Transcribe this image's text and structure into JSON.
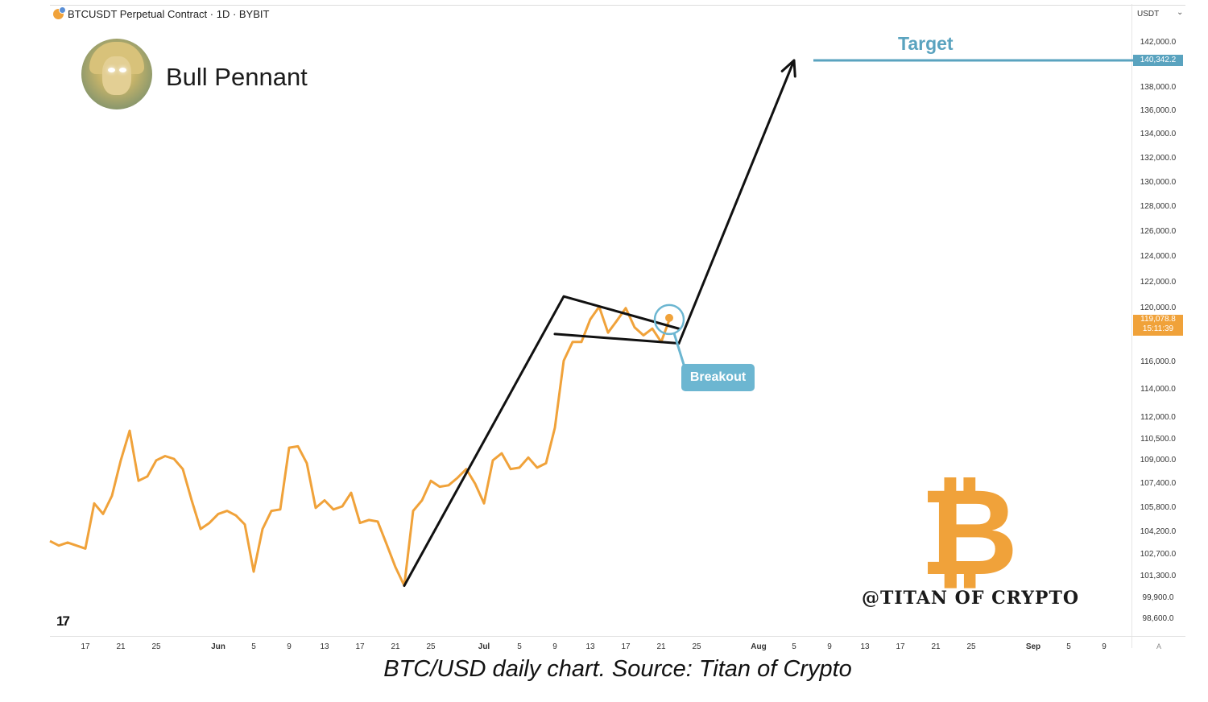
{
  "header": {
    "symbol_line": "BTCUSDT Perpetual Contract · 1D · BYBIT",
    "currency": "USDT",
    "currency_chevron": "⌄"
  },
  "annotation": {
    "title": "Bull Pennant",
    "target_label": "Target",
    "breakout_label": "Breakout",
    "watermark": "@TITAN OF CRYPTO",
    "btc_symbol": "₿"
  },
  "price_tags": {
    "target": "140,342.2",
    "last_price": "119,078.8",
    "countdown": "15:11:39"
  },
  "footer": {
    "tv_logo": "17",
    "caption": "BTC/USD daily chart. Source: Titan of Crypto",
    "corner_label": "A"
  },
  "colors": {
    "price_line": "#f0a23a",
    "target": "#5aa3bf",
    "breakout": "#6cb6d1",
    "drawing": "#111111"
  },
  "icons": [
    "bitcoin-coin-icon",
    "tradingview-logo-icon",
    "chevron-down-icon"
  ],
  "chart_data": {
    "type": "line",
    "title": "Bull Pennant",
    "y_axis_ticks": [
      "142,000.0",
      "140,342.2",
      "138,000.0",
      "136,000.0",
      "134,000.0",
      "132,000.0",
      "130,000.0",
      "128,000.0",
      "126,000.0",
      "124,000.0",
      "122,000.0",
      "120,000.0",
      "119,078.8",
      "116,000.0",
      "114,000.0",
      "112,000.0",
      "110,500.0",
      "109,000.0",
      "107,400.0",
      "105,800.0",
      "104,200.0",
      "102,700.0",
      "101,300.0",
      "99,900.0",
      "98,600.0"
    ],
    "y_tick_values": [
      142000,
      140342.2,
      138000,
      136000,
      134000,
      132000,
      130000,
      128000,
      126000,
      124000,
      122000,
      120000,
      119078.8,
      116000,
      114000,
      112000,
      110500,
      109000,
      107400,
      105800,
      104200,
      102700,
      101300,
      99900,
      98600
    ],
    "x_axis_ticks": [
      "17",
      "21",
      "25",
      "Jun",
      "5",
      "9",
      "13",
      "17",
      "21",
      "25",
      "Jul",
      "5",
      "9",
      "13",
      "17",
      "21",
      "25",
      "Aug",
      "5",
      "9",
      "13",
      "17",
      "21",
      "25",
      "Sep",
      "5",
      "9"
    ],
    "x_start": "2025-05-13",
    "x_tick_dates": [
      "2025-05-17",
      "2025-05-21",
      "2025-05-25",
      "2025-06-01",
      "2025-06-05",
      "2025-06-09",
      "2025-06-13",
      "2025-06-17",
      "2025-06-21",
      "2025-06-25",
      "2025-07-01",
      "2025-07-05",
      "2025-07-09",
      "2025-07-13",
      "2025-07-17",
      "2025-07-21",
      "2025-07-25",
      "2025-08-01",
      "2025-08-05",
      "2025-08-09",
      "2025-08-13",
      "2025-08-17",
      "2025-08-21",
      "2025-08-25",
      "2025-09-01",
      "2025-09-05",
      "2025-09-09"
    ],
    "bold_ticks": [
      "Jun",
      "Jul",
      "Aug",
      "Sep"
    ],
    "series": [
      {
        "dates": [
          "2025-05-13",
          "2025-05-14",
          "2025-05-15",
          "2025-05-16",
          "2025-05-17",
          "2025-05-18",
          "2025-05-19",
          "2025-05-20",
          "2025-05-21",
          "2025-05-22",
          "2025-05-23",
          "2025-05-24",
          "2025-05-25",
          "2025-05-26",
          "2025-05-27",
          "2025-05-28",
          "2025-05-29",
          "2025-05-30",
          "2025-05-31",
          "2025-06-01",
          "2025-06-02",
          "2025-06-03",
          "2025-06-04",
          "2025-06-05",
          "2025-06-06",
          "2025-06-07",
          "2025-06-08",
          "2025-06-09",
          "2025-06-10",
          "2025-06-11",
          "2025-06-12",
          "2025-06-13",
          "2025-06-14",
          "2025-06-15",
          "2025-06-16",
          "2025-06-17",
          "2025-06-18",
          "2025-06-19",
          "2025-06-20",
          "2025-06-21",
          "2025-06-22",
          "2025-06-23",
          "2025-06-24",
          "2025-06-25",
          "2025-06-26",
          "2025-06-27",
          "2025-06-28",
          "2025-06-29",
          "2025-06-30",
          "2025-07-01",
          "2025-07-02",
          "2025-07-03",
          "2025-07-04",
          "2025-07-05",
          "2025-07-06",
          "2025-07-07",
          "2025-07-08",
          "2025-07-09",
          "2025-07-10",
          "2025-07-11",
          "2025-07-12",
          "2025-07-13",
          "2025-07-14",
          "2025-07-15",
          "2025-07-16",
          "2025-07-17",
          "2025-07-18",
          "2025-07-19",
          "2025-07-20",
          "2025-07-21",
          "2025-07-22"
        ],
        "values": [
          103500,
          103200,
          103400,
          103200,
          103000,
          106000,
          105300,
          106500,
          108900,
          111000,
          107500,
          107800,
          108900,
          109200,
          109000,
          108300,
          106200,
          104300,
          104700,
          105300,
          105500,
          105200,
          104600,
          101500,
          104300,
          105500,
          105600,
          109800,
          109900,
          108700,
          105700,
          106200,
          105600,
          105800,
          106700,
          104700,
          104900,
          104800,
          103300,
          101800,
          100600,
          105500,
          106200,
          107500,
          107100,
          107200,
          107700,
          108300,
          107300,
          106000,
          108900,
          109400,
          108300,
          108400,
          109100,
          108400,
          108700,
          111200,
          116000,
          117400,
          117400,
          119100,
          120000,
          118100,
          119000,
          119900,
          118500,
          117900,
          118400,
          117400,
          119200
        ]
      }
    ],
    "pennant": {
      "pole_start": {
        "date": "2025-06-22",
        "price": 100600
      },
      "pole_top": {
        "date": "2025-07-10",
        "price": 120800
      },
      "flag_left": {
        "date": "2025-07-09",
        "price": 118000
      },
      "flag_right": {
        "date": "2025-07-23",
        "price": 117300
      },
      "flag_upper_right": {
        "date": "2025-07-23",
        "price": 118400
      },
      "arrow_tip": {
        "date": "2025-08-05",
        "price": 140342.2
      }
    },
    "target_price": 140342.2,
    "breakout_point": {
      "date": "2025-07-22",
      "price": 119200
    }
  }
}
